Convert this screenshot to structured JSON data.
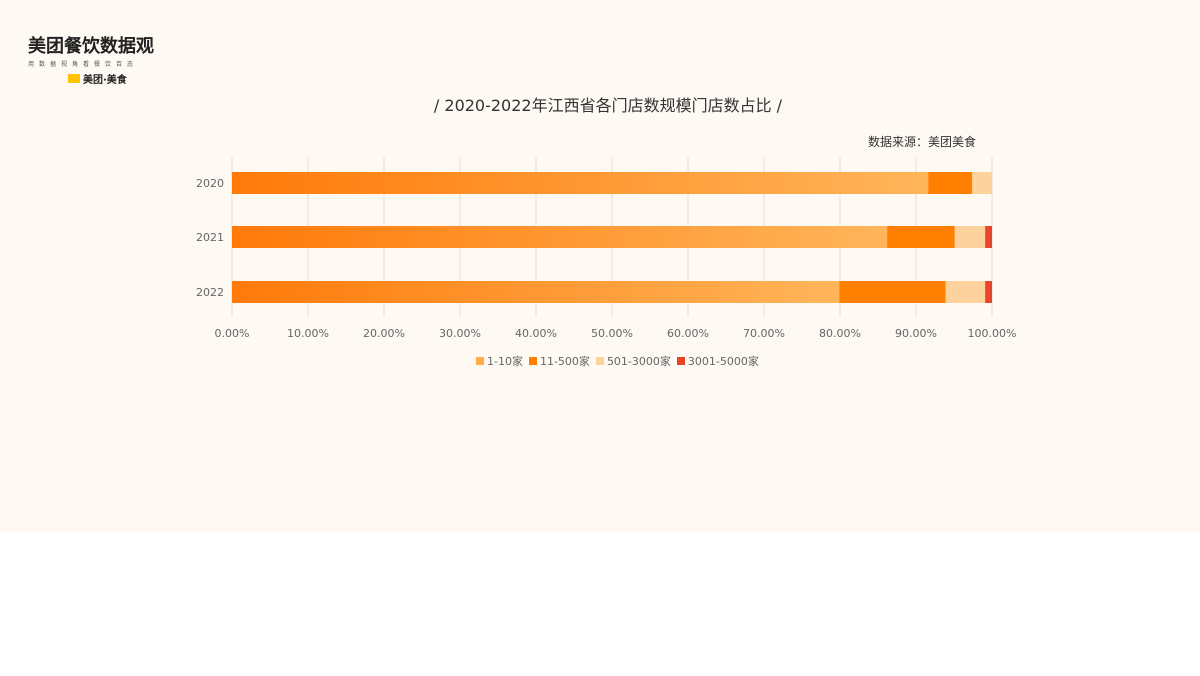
{
  "logo": {
    "main": "美团餐饮数据观",
    "sub": "用数据视角看餐饮百态",
    "brand": "美团·美食"
  },
  "chart_data": {
    "type": "bar",
    "orientation": "horizontal",
    "stacked": "percent",
    "title": "/  2020-2022年江西省各门店数规模门店数占比 /",
    "source": "数据来源：美团美食",
    "categories": [
      "2020",
      "2021",
      "2022"
    ],
    "series": [
      {
        "name": "1-10家",
        "color": "#ffab4a",
        "values": [
          91.6,
          86.2,
          79.9
        ]
      },
      {
        "name": "11-500家",
        "color": "#ff7f00",
        "values": [
          5.8,
          8.9,
          14.0
        ]
      },
      {
        "name": "501-3000家",
        "color": "#fdd29c",
        "values": [
          2.6,
          4.0,
          5.2
        ]
      },
      {
        "name": "3001-5000家",
        "color": "#e8452a",
        "values": [
          0.0,
          0.9,
          0.9
        ]
      }
    ],
    "xlim": [
      0,
      100
    ],
    "xticks": [
      "0.00%",
      "10.00%",
      "20.00%",
      "30.00%",
      "40.00%",
      "50.00%",
      "60.00%",
      "70.00%",
      "80.00%",
      "90.00%",
      "100.00%"
    ],
    "grid": true,
    "legend": "bottom"
  }
}
